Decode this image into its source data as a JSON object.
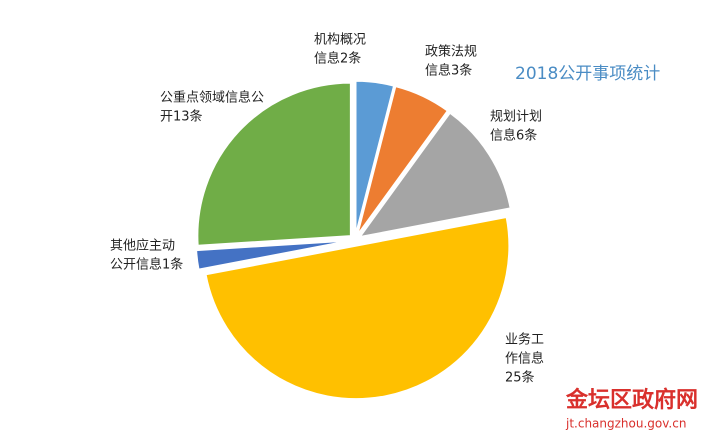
{
  "chart_data": {
    "type": "pie",
    "title": "2018公开事项统计",
    "values": [
      2,
      3,
      6,
      25,
      1,
      13
    ],
    "value_labels": [
      [
        "机构概况",
        "信息2条"
      ],
      [
        "政策法规",
        "信息3条"
      ],
      [
        "规划计划",
        "信息6条"
      ],
      [
        "业务工",
        "作信息",
        "25条"
      ],
      [
        "其他应主动",
        "公开信息1条"
      ],
      [
        "公重点领域信息公",
        "开13条"
      ]
    ],
    "colors": [
      "#5b9bd5",
      "#ed7d31",
      "#a5a5a5",
      "#ffc000",
      "#4472c4",
      "#70ad47"
    ]
  },
  "watermark": {
    "site": "金坛区政府网",
    "url": "jt.changzhou.gov.cn"
  }
}
